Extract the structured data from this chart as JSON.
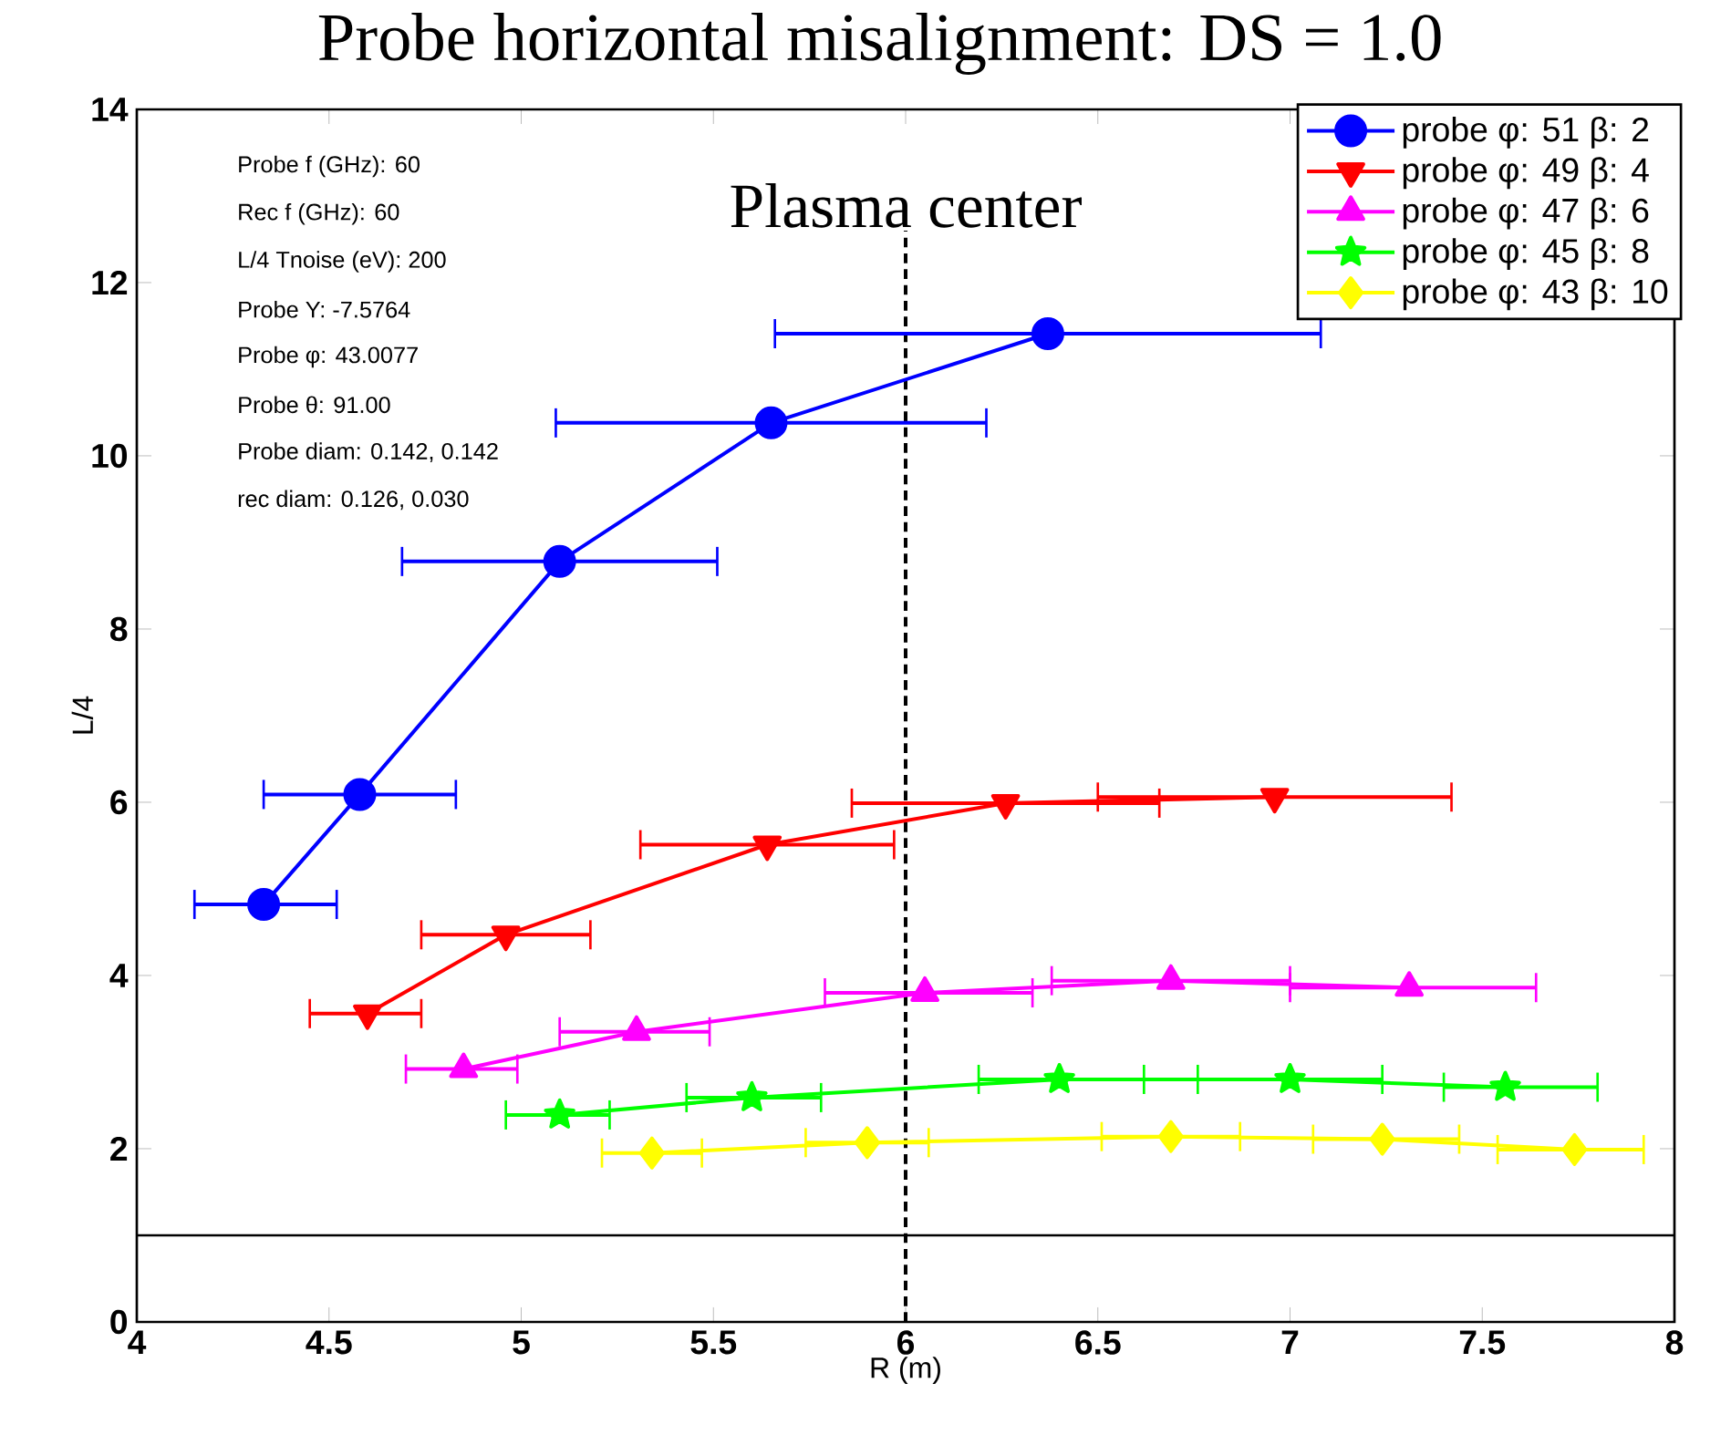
{
  "chart_data": {
    "type": "line",
    "title": "Probe horizontal  misalignment: DS = 1.0",
    "xlabel": "R (m)",
    "ylabel": "L/4",
    "xlim": [
      4,
      8
    ],
    "ylim": [
      0,
      14
    ],
    "xticks": [
      4,
      4.5,
      5,
      5.5,
      6,
      6.5,
      7,
      7.5,
      8
    ],
    "yticks": [
      0,
      2,
      4,
      6,
      8,
      10,
      12,
      14
    ],
    "legend": "top right",
    "annotations": [
      "Probe f (GHz): 60",
      "Rec f (GHz): 60",
      "L/4 Tnoise (eV): 200",
      "Probe Y: -7.5764",
      "Probe  φ: 43.0077",
      "Probe  θ: 91.00",
      "Probe diam: 0.142,  0.142",
      "rec diam: 0.126,  0.030"
    ],
    "ref_lines": [
      {
        "axis": "x",
        "value": 6,
        "label": "Plasma center",
        "line_style": "dashed",
        "color": "#000000"
      },
      {
        "axis": "y",
        "value": 1,
        "color": "#000000"
      }
    ],
    "series": [
      {
        "name": "probe φ: 51 β: 2",
        "color": "#0000ff",
        "marker": "circle",
        "x": [
          4.33,
          4.58,
          5.1,
          5.65,
          6.37
        ],
        "values": [
          4.82,
          6.09,
          8.78,
          10.38,
          11.41
        ],
        "xerrors": [
          [
            4.15,
            4.52
          ],
          [
            4.33,
            4.83
          ],
          [
            4.69,
            5.51
          ],
          [
            5.09,
            6.21
          ],
          [
            5.66,
            7.08
          ]
        ]
      },
      {
        "name": "probe φ: 49 β: 4",
        "color": "#ff0000",
        "marker": "triangle down",
        "x": [
          4.6,
          4.96,
          5.64,
          6.26,
          6.96
        ],
        "values": [
          3.56,
          4.47,
          5.51,
          5.99,
          6.06
        ],
        "xerrors": [
          [
            4.45,
            4.74
          ],
          [
            4.74,
            5.18
          ],
          [
            5.31,
            5.97
          ],
          [
            5.86,
            6.66
          ],
          [
            6.5,
            7.42
          ]
        ]
      },
      {
        "name": "probe φ: 47 β: 6",
        "color": "#ff00ff",
        "marker": "triangle",
        "x": [
          4.85,
          5.3,
          6.05,
          6.69,
          7.31
        ],
        "values": [
          2.92,
          3.35,
          3.8,
          3.94,
          3.86
        ],
        "xerrors": [
          [
            4.7,
            4.99
          ],
          [
            5.1,
            5.49
          ],
          [
            5.79,
            6.33
          ],
          [
            6.38,
            7.0
          ],
          [
            7.0,
            7.64
          ]
        ]
      },
      {
        "name": "probe φ: 45 β: 8",
        "color": "#00ff00",
        "marker": "star",
        "x": [
          5.1,
          5.6,
          6.4,
          7.0,
          7.56
        ],
        "values": [
          2.39,
          2.59,
          2.8,
          2.8,
          2.71
        ],
        "xerrors": [
          [
            4.96,
            5.23
          ],
          [
            5.43,
            5.78
          ],
          [
            6.19,
            6.62
          ],
          [
            6.76,
            7.24
          ],
          [
            7.4,
            7.8
          ]
        ]
      },
      {
        "name": "probe φ: 43 β: 10",
        "color": "#ffff00",
        "marker": "diamond",
        "x": [
          5.34,
          5.9,
          6.69,
          7.24,
          7.74
        ],
        "values": [
          1.95,
          2.07,
          2.14,
          2.11,
          1.99
        ],
        "xerrors": [
          [
            5.21,
            5.47
          ],
          [
            5.74,
            6.06
          ],
          [
            6.51,
            6.87
          ],
          [
            7.06,
            7.44
          ],
          [
            7.54,
            7.92
          ]
        ]
      }
    ]
  }
}
